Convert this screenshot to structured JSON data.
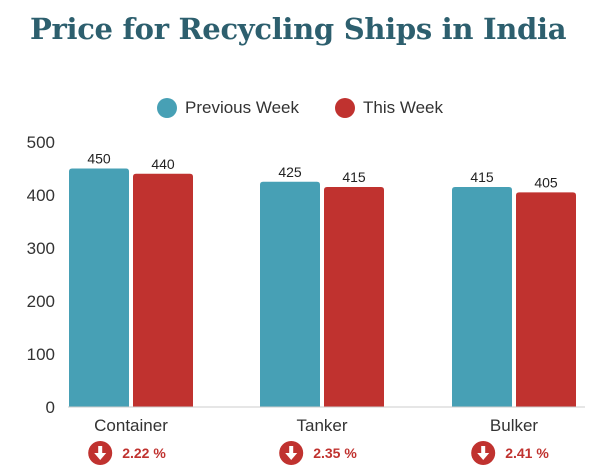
{
  "title": "Price for Recycling Ships in India",
  "colors": {
    "previous": "#47a0b5",
    "current": "#c0322f",
    "title": "#2d5f6e"
  },
  "legend": [
    {
      "label": "Previous Week",
      "color": "#47a0b5"
    },
    {
      "label": "This Week",
      "color": "#c0322f"
    }
  ],
  "chart_data": {
    "type": "bar",
    "categories": [
      "Container",
      "Tanker",
      "Bulker"
    ],
    "series": [
      {
        "name": "Previous Week",
        "values": [
          450,
          425,
          415
        ]
      },
      {
        "name": "This Week",
        "values": [
          440,
          415,
          405
        ]
      }
    ],
    "yticks": [
      0,
      100,
      200,
      300,
      400,
      500
    ],
    "ylim": [
      0,
      500
    ],
    "grid": false,
    "legend_position": "top-center"
  },
  "changes": [
    {
      "category": "Container",
      "text": "2.22 %",
      "icon": "arrow-down-icon"
    },
    {
      "category": "Tanker",
      "text": "2.35 %",
      "icon": "arrow-down-icon"
    },
    {
      "category": "Bulker",
      "text": "2.41 %",
      "icon": "arrow-down-icon"
    }
  ]
}
